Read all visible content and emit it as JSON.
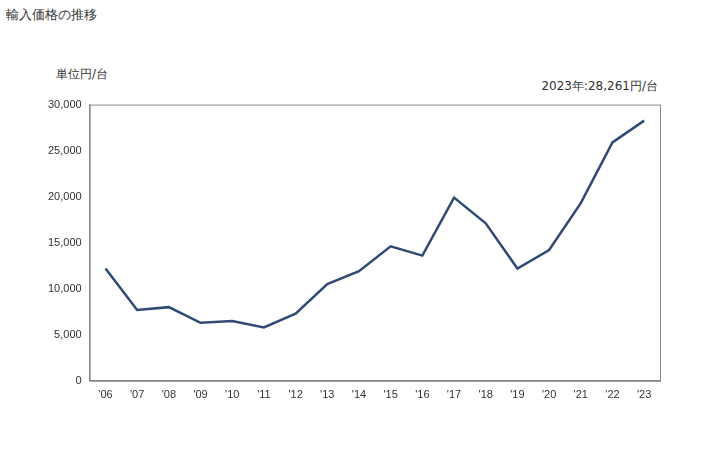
{
  "chart_data": {
    "type": "line",
    "title": "輸入価格の推移",
    "ylabel": "単位円/台",
    "annotation": "2023年:28,261円/台",
    "categories": [
      "'06",
      "'07",
      "'08",
      "'09",
      "'10",
      "'11",
      "'12",
      "'13",
      "'14",
      "'15",
      "'16",
      "'17",
      "'18",
      "'19",
      "'20",
      "'21",
      "'22",
      "'23"
    ],
    "values": [
      12200,
      7700,
      8000,
      6300,
      6500,
      5800,
      7300,
      10500,
      11900,
      14600,
      13600,
      19900,
      17100,
      12200,
      14200,
      19300,
      25900,
      28261
    ],
    "color": "#2f4b73",
    "ylim": [
      0,
      30000
    ],
    "yticks": [
      0,
      {
        "value": 5000,
        "label": "5,000"
      },
      {
        "value": 10000,
        "label": "10,000"
      },
      {
        "value": 15000,
        "label": "15,000"
      },
      {
        "value": 20000,
        "label": "20,000"
      },
      {
        "value": 25000,
        "label": "25,000"
      },
      {
        "value": 30000,
        "label": "30,000"
      }
    ],
    "grid": false
  }
}
